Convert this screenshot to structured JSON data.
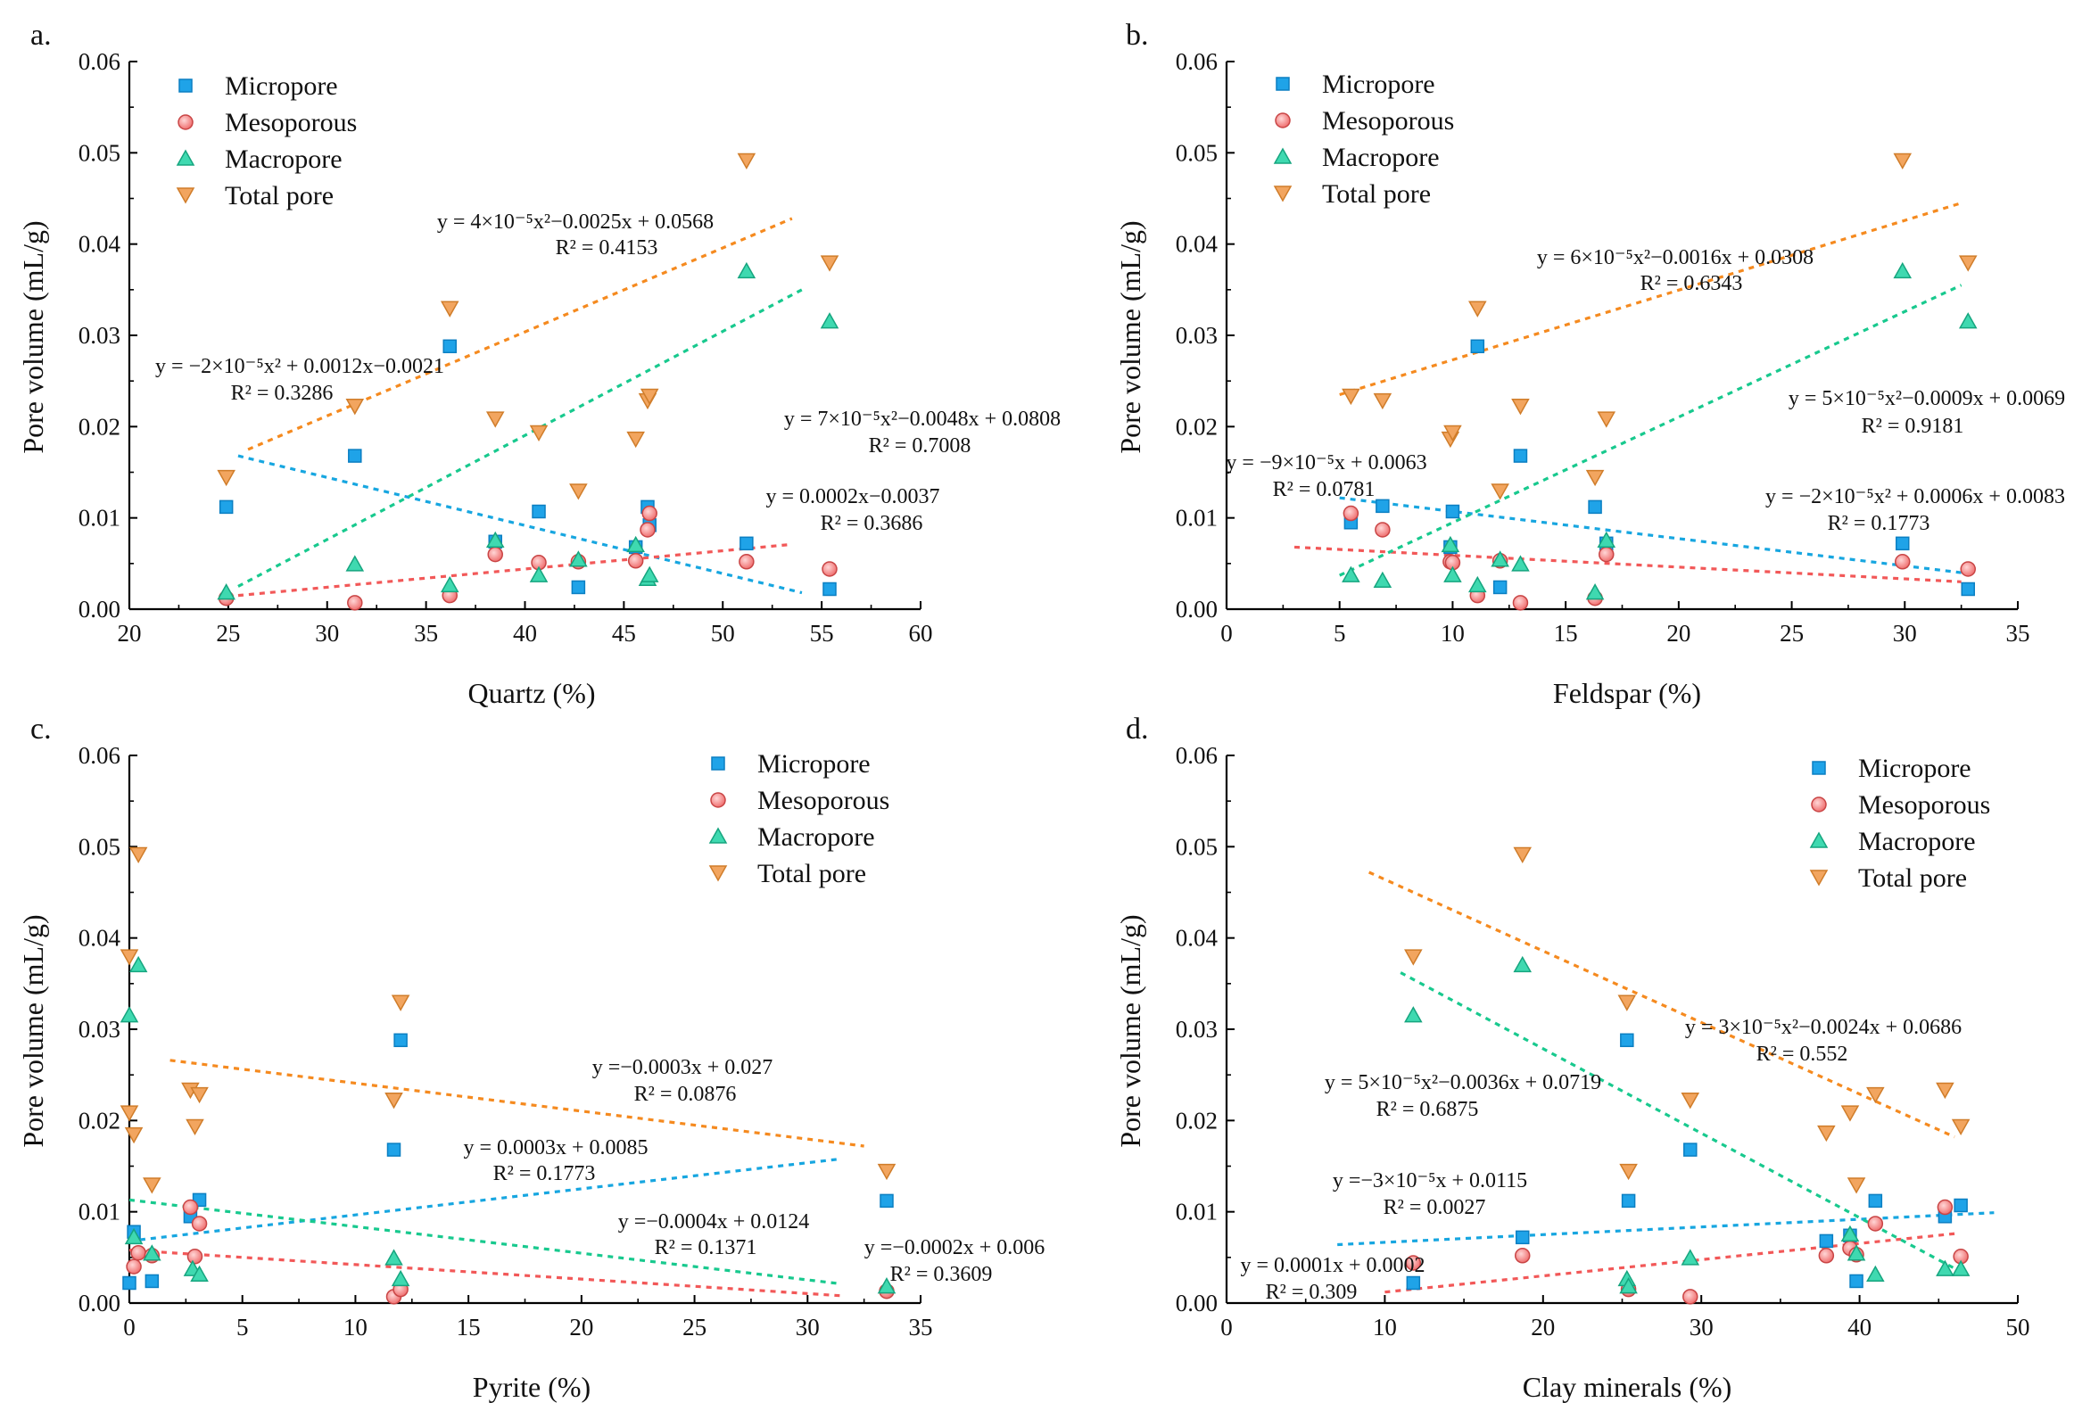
{
  "colors": {
    "micropore": "#1fa3e8",
    "mesoporous": "#f07676",
    "macropore": "#3fd9b0",
    "total": "#f2a55f",
    "micropore_eq": "#17a6e0",
    "mesoporous_eq": "#f25858",
    "macropore_eq": "#18c98e",
    "total_eq": "#f58a1f"
  },
  "legend_labels": [
    "Micropore",
    "Mesoporous",
    "Macropore",
    "Total pore"
  ],
  "chart_data": [
    {
      "type": "scatter",
      "panel_label": "a.",
      "xlabel": "Quartz (%)",
      "ylabel": "Pore volume (mL/g)",
      "xlim": [
        20,
        60
      ],
      "ylim": [
        0,
        0.06
      ],
      "xticks": [
        "20",
        "25",
        "30",
        "35",
        "40",
        "45",
        "50",
        "55",
        "60"
      ],
      "yticks": [
        "0.00",
        "0.01",
        "0.02",
        "0.03",
        "0.04",
        "0.05",
        "0.06"
      ],
      "legend_position": "top-left",
      "series": [
        {
          "name": "Micropore",
          "x": [
            24.9,
            31.4,
            36.2,
            38.5,
            40.7,
            42.7,
            45.6,
            46.2,
            46.3,
            51.2,
            55.4
          ],
          "y": [
            0.0112,
            0.0168,
            0.0288,
            0.0074,
            0.0107,
            0.0024,
            0.0068,
            0.0112,
            0.0092,
            0.0072,
            0.0022
          ]
        },
        {
          "name": "Mesoporous",
          "x": [
            24.9,
            31.4,
            36.2,
            38.5,
            40.7,
            42.7,
            45.6,
            46.2,
            46.3,
            51.2,
            55.4
          ],
          "y": [
            0.0012,
            0.0007,
            0.0015,
            0.006,
            0.0051,
            0.0052,
            0.0053,
            0.0087,
            0.0105,
            0.0052,
            0.0044
          ]
        },
        {
          "name": "Macropore",
          "x": [
            24.9,
            31.4,
            36.2,
            38.5,
            40.7,
            42.7,
            45.6,
            46.2,
            46.3,
            51.2,
            55.4
          ],
          "y": [
            0.0018,
            0.0049,
            0.0026,
            0.0075,
            0.0037,
            0.0054,
            0.007,
            0.0033,
            0.0037,
            0.037,
            0.0315
          ]
        },
        {
          "name": "Total pore",
          "x": [
            24.9,
            31.4,
            36.2,
            38.5,
            40.7,
            42.7,
            45.6,
            46.2,
            46.3,
            51.2,
            55.4
          ],
          "y": [
            0.0145,
            0.0223,
            0.033,
            0.0209,
            0.0194,
            0.013,
            0.0187,
            0.0229,
            0.0234,
            0.0492,
            0.038
          ]
        }
      ],
      "fits": [
        {
          "series": "Micropore",
          "x": [
            25.5,
            54
          ],
          "y": [
            0.0168,
            0.0018
          ],
          "equation": "y = −2×10⁻⁵x² + 0.0012x−0.0021",
          "r2": "R² = 0.3286"
        },
        {
          "series": "Mesoporous",
          "x": [
            25.5,
            53.5
          ],
          "y": [
            0.0015,
            0.0071
          ],
          "equation": "y = 0.0002x−0.0037",
          "r2": "R² = 0.3686"
        },
        {
          "series": "Macropore",
          "x": [
            25.5,
            54
          ],
          "y": [
            0.0025,
            0.035
          ],
          "equation": "y = 7×10⁻⁵x²−0.0048x + 0.0808",
          "r2": "R² = 0.7008"
        },
        {
          "series": "Total pore",
          "x": [
            26,
            53.5
          ],
          "y": [
            0.0175,
            0.0428
          ],
          "equation": "y = 4×10⁻⁵x²−0.0025x + 0.0568",
          "r2": "R² = 0.4153"
        }
      ]
    },
    {
      "type": "scatter",
      "panel_label": "b.",
      "xlabel": "Feldspar (%)",
      "ylabel": "Pore volume (mL/g)",
      "xlim": [
        0,
        35
      ],
      "ylim": [
        0,
        0.06
      ],
      "xticks": [
        "0",
        "5",
        "10",
        "15",
        "20",
        "25",
        "30",
        "35"
      ],
      "yticks": [
        "0.00",
        "0.01",
        "0.02",
        "0.03",
        "0.04",
        "0.05",
        "0.06"
      ],
      "legend_position": "top-left",
      "series": [
        {
          "name": "Micropore",
          "x": [
            5.5,
            6.9,
            9.9,
            10,
            11.1,
            12.1,
            13,
            16.3,
            16.8,
            29.9,
            32.8
          ],
          "y": [
            0.0095,
            0.0113,
            0.0068,
            0.0107,
            0.0288,
            0.0024,
            0.0168,
            0.0112,
            0.0072,
            0.0072,
            0.0022
          ]
        },
        {
          "name": "Mesoporous",
          "x": [
            5.5,
            6.9,
            9.9,
            10,
            11.1,
            12.1,
            13,
            16.3,
            16.8,
            29.9,
            32.8
          ],
          "y": [
            0.0105,
            0.0087,
            0.0052,
            0.0051,
            0.0015,
            0.0053,
            0.0007,
            0.0012,
            0.006,
            0.0052,
            0.0044
          ]
        },
        {
          "name": "Macropore",
          "x": [
            5.5,
            6.9,
            9.9,
            10,
            11.1,
            12.1,
            13,
            16.3,
            16.8,
            29.9,
            32.8
          ],
          "y": [
            0.0037,
            0.0031,
            0.007,
            0.0037,
            0.0026,
            0.0054,
            0.0049,
            0.0018,
            0.0075,
            0.037,
            0.0315
          ]
        },
        {
          "name": "Total pore",
          "x": [
            5.5,
            6.9,
            9.9,
            10,
            11.1,
            12.1,
            13,
            16.3,
            16.8,
            29.9,
            32.8
          ],
          "y": [
            0.0234,
            0.0229,
            0.0187,
            0.0194,
            0.033,
            0.013,
            0.0223,
            0.0145,
            0.0209,
            0.0492,
            0.038
          ]
        }
      ],
      "fits": [
        {
          "series": "Micropore",
          "x": [
            5,
            32.5
          ],
          "y": [
            0.0122,
            0.004
          ],
          "equation": "y = −2×10⁻⁵x² + 0.0006x + 0.0083",
          "r2": "R² = 0.1773"
        },
        {
          "series": "Mesoporous",
          "x": [
            3,
            32.5
          ],
          "y": [
            0.0068,
            0.003
          ],
          "equation": "y = −9×10⁻⁵x + 0.0063",
          "r2": "R² = 0.0781"
        },
        {
          "series": "Macropore",
          "x": [
            5,
            32.5
          ],
          "y": [
            0.0037,
            0.0355
          ],
          "equation": "y = 5×10⁻⁵x²−0.0009x + 0.0069",
          "r2": "R² = 0.9181"
        },
        {
          "series": "Total pore",
          "x": [
            5,
            32.5
          ],
          "y": [
            0.0235,
            0.0445
          ],
          "equation": "y = 6×10⁻⁵x²−0.0016x + 0.0308",
          "r2": "R² = 0.6343"
        }
      ]
    },
    {
      "type": "scatter",
      "panel_label": "c.",
      "xlabel": "Pyrite (%)",
      "ylabel": "Pore volume (mL/g)",
      "xlim": [
        0,
        35
      ],
      "ylim": [
        0,
        0.06
      ],
      "xticks": [
        "0",
        "5",
        "10",
        "15",
        "20",
        "25",
        "30",
        "35"
      ],
      "yticks": [
        "0.00",
        "0.01",
        "0.02",
        "0.03",
        "0.04",
        "0.05",
        "0.06"
      ],
      "legend_position": "top-right",
      "series": [
        {
          "name": "Micropore",
          "x": [
            0,
            0.2,
            1,
            2.7,
            3.1,
            11.7,
            12,
            33.5
          ],
          "y": [
            0.0022,
            0.0078,
            0.0024,
            0.0095,
            0.0113,
            0.0168,
            0.0288,
            0.0112
          ]
        },
        {
          "name": "Mesoporous",
          "x": [
            0.2,
            0.4,
            1,
            2.7,
            2.9,
            3.1,
            11.7,
            12,
            33.5
          ],
          "y": [
            0.004,
            0.0055,
            0.0052,
            0.0105,
            0.0051,
            0.0087,
            0.0007,
            0.0015,
            0.0013
          ]
        },
        {
          "name": "Macropore",
          "x": [
            0,
            0.2,
            0.4,
            1,
            2.8,
            3.1,
            11.7,
            12,
            33.5
          ],
          "y": [
            0.0315,
            0.0072,
            0.037,
            0.0054,
            0.0037,
            0.0031,
            0.0049,
            0.0026,
            0.0018
          ]
        },
        {
          "name": "Total pore",
          "x": [
            0,
            0.2,
            0.4,
            1,
            2.7,
            2.9,
            3.1,
            11.7,
            12,
            33.5
          ],
          "y": [
            0.038,
            0.0185,
            0.0492,
            0.013,
            0.0234,
            0.0194,
            0.0229,
            0.0223,
            0.033,
            0.0145
          ]
        },
        {
          "name": "Total pore",
          "x": [
            0
          ],
          "y": [
            0.0209
          ]
        }
      ],
      "fits": [
        {
          "series": "Micropore",
          "x": [
            0,
            31.5
          ],
          "y": [
            0.0068,
            0.0158
          ],
          "equation": "y = 0.0003x + 0.0085",
          "r2": "R² = 0.1773"
        },
        {
          "series": "Mesoporous",
          "x": [
            0,
            31.5
          ],
          "y": [
            0.0058,
            0.0008
          ],
          "equation": "y =−0.0002x + 0.006",
          "r2": "R² = 0.3609"
        },
        {
          "series": "Macropore",
          "x": [
            0,
            31.5
          ],
          "y": [
            0.0113,
            0.0021
          ],
          "equation": "y =−0.0004x + 0.0124",
          "r2": "R² = 0.1371"
        },
        {
          "series": "Total pore",
          "x": [
            1.8,
            32.5
          ],
          "y": [
            0.0266,
            0.0172
          ],
          "equation": "y =−0.0003x + 0.027",
          "r2": "R² = 0.0876"
        }
      ]
    },
    {
      "type": "scatter",
      "panel_label": "d.",
      "xlabel": "Clay minerals (%)",
      "ylabel": "Pore volume (mL/g)",
      "xlim": [
        0,
        50
      ],
      "ylim": [
        0,
        0.06
      ],
      "xticks": [
        "0",
        "10",
        "20",
        "30",
        "40",
        "50"
      ],
      "yticks": [
        "0.00",
        "0.01",
        "0.02",
        "0.03",
        "0.04",
        "0.05",
        "0.06"
      ],
      "legend_position": "top-right",
      "series": [
        {
          "name": "Micropore",
          "x": [
            11.8,
            18.7,
            25.3,
            25.4,
            29.3,
            37.9,
            39.4,
            39.8,
            41,
            45.4,
            46.4
          ],
          "y": [
            0.0022,
            0.0072,
            0.0288,
            0.0112,
            0.0168,
            0.0068,
            0.0074,
            0.0024,
            0.0112,
            0.0095,
            0.0107
          ]
        },
        {
          "name": "Mesoporous",
          "x": [
            11.8,
            18.7,
            25.4,
            29.3,
            37.9,
            39.4,
            39.8,
            41,
            45.4,
            46.4
          ],
          "y": [
            0.0044,
            0.0052,
            0.0015,
            0.0007,
            0.0052,
            0.006,
            0.0053,
            0.0087,
            0.0105,
            0.0051
          ]
        },
        {
          "name": "Macropore",
          "x": [
            11.8,
            18.7,
            25.3,
            25.4,
            29.3,
            39.4,
            39.8,
            41,
            45.4,
            46.4
          ],
          "y": [
            0.0315,
            0.037,
            0.0026,
            0.0018,
            0.0049,
            0.0075,
            0.0054,
            0.0031,
            0.0037,
            0.0037
          ]
        },
        {
          "name": "Total pore",
          "x": [
            11.8,
            18.7,
            25.3,
            25.4,
            29.3,
            37.9,
            39.4,
            39.8,
            41,
            45.4,
            46.4
          ],
          "y": [
            0.038,
            0.0492,
            0.033,
            0.0145,
            0.0223,
            0.0187,
            0.0209,
            0.013,
            0.0229,
            0.0234,
            0.0194
          ]
        }
      ],
      "fits": [
        {
          "series": "Micropore",
          "x": [
            7,
            48.5
          ],
          "y": [
            0.0064,
            0.0099
          ],
          "equation": "y =−3×10⁻⁵x + 0.0115",
          "r2": "R² = 0.0027"
        },
        {
          "series": "Mesoporous",
          "x": [
            10,
            46
          ],
          "y": [
            0.0012,
            0.0076
          ],
          "equation": "y = 0.0001x + 0.0002",
          "r2": "R² = 0.309"
        },
        {
          "series": "Macropore",
          "x": [
            11,
            46
          ],
          "y": [
            0.0362,
            0.0038
          ],
          "equation": "y = 5×10⁻⁵x²−0.0036x + 0.0719",
          "r2": "R² = 0.6875"
        },
        {
          "series": "Total pore",
          "x": [
            9,
            46
          ],
          "y": [
            0.0472,
            0.0182
          ],
          "equation": "y = 3×10⁻⁵x²−0.0024x + 0.0686",
          "r2": "R² = 0.552"
        }
      ]
    }
  ]
}
